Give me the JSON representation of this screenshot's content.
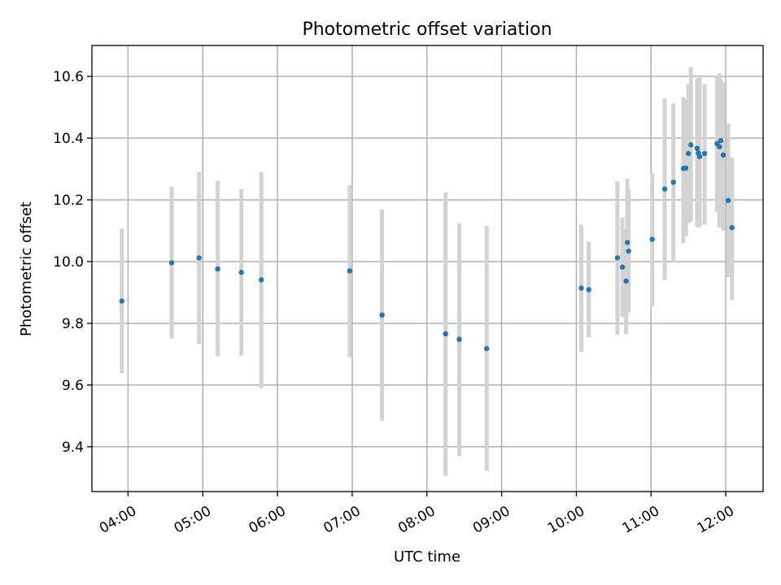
{
  "chart_data": {
    "type": "scatter",
    "title": "Photometric offset variation",
    "xlabel": "UTC time",
    "ylabel": "Photometric offset",
    "x_tick_labels": [
      "04:00",
      "05:00",
      "06:00",
      "07:00",
      "08:00",
      "09:00",
      "10:00",
      "11:00",
      "12:00"
    ],
    "y_tick_labels": [
      "9.4",
      "9.6",
      "9.8",
      "10.0",
      "10.2",
      "10.4",
      "10.6"
    ],
    "y_ticks": [
      9.4,
      9.6,
      9.8,
      10.0,
      10.2,
      10.4,
      10.6
    ],
    "xlim": [
      "03:31",
      "12:30"
    ],
    "ylim": [
      9.255,
      10.7
    ],
    "grid": true,
    "marker_color": "#1f77b4",
    "errorbar_color": "#d3d3d3",
    "points": [
      {
        "time": "03:55",
        "y": 9.872,
        "lo": 9.638,
        "hi": 10.107
      },
      {
        "time": "04:35",
        "y": 9.996,
        "lo": 9.75,
        "hi": 10.243
      },
      {
        "time": "04:57",
        "y": 10.012,
        "lo": 9.733,
        "hi": 10.291
      },
      {
        "time": "05:12",
        "y": 9.976,
        "lo": 9.693,
        "hi": 10.262
      },
      {
        "time": "05:31",
        "y": 9.965,
        "lo": 9.695,
        "hi": 10.235
      },
      {
        "time": "05:47",
        "y": 9.941,
        "lo": 9.59,
        "hi": 10.29
      },
      {
        "time": "06:58",
        "y": 9.97,
        "lo": 9.69,
        "hi": 10.248
      },
      {
        "time": "07:24",
        "y": 9.827,
        "lo": 9.484,
        "hi": 10.169
      },
      {
        "time": "08:15",
        "y": 9.766,
        "lo": 9.306,
        "hi": 10.224
      },
      {
        "time": "08:26",
        "y": 9.748,
        "lo": 9.37,
        "hi": 10.124
      },
      {
        "time": "08:48",
        "y": 9.718,
        "lo": 9.322,
        "hi": 10.115
      },
      {
        "time": "10:04",
        "y": 9.914,
        "lo": 9.708,
        "hi": 10.12
      },
      {
        "time": "10:10",
        "y": 9.909,
        "lo": 9.755,
        "hi": 10.065
      },
      {
        "time": "10:33",
        "y": 10.012,
        "lo": 9.763,
        "hi": 10.26
      },
      {
        "time": "10:37",
        "y": 9.982,
        "lo": 9.82,
        "hi": 10.143
      },
      {
        "time": "10:40",
        "y": 9.937,
        "lo": 9.765,
        "hi": 10.108
      },
      {
        "time": "10:41",
        "y": 10.062,
        "lo": 9.856,
        "hi": 10.268
      },
      {
        "time": "10:42",
        "y": 10.034,
        "lo": 9.835,
        "hi": 10.233
      },
      {
        "time": "11:01",
        "y": 10.072,
        "lo": 9.855,
        "hi": 10.288
      },
      {
        "time": "11:11",
        "y": 10.235,
        "lo": 9.94,
        "hi": 10.528
      },
      {
        "time": "11:18",
        "y": 10.257,
        "lo": 10.0,
        "hi": 10.512
      },
      {
        "time": "11:26",
        "y": 10.302,
        "lo": 10.06,
        "hi": 10.533
      },
      {
        "time": "11:28",
        "y": 10.303,
        "lo": 10.08,
        "hi": 10.523
      },
      {
        "time": "11:30",
        "y": 10.35,
        "lo": 10.125,
        "hi": 10.575
      },
      {
        "time": "11:32",
        "y": 10.378,
        "lo": 10.13,
        "hi": 10.63
      },
      {
        "time": "11:37",
        "y": 10.367,
        "lo": 10.115,
        "hi": 10.59
      },
      {
        "time": "11:38",
        "y": 10.352,
        "lo": 10.11,
        "hi": 10.595
      },
      {
        "time": "11:39",
        "y": 10.34,
        "lo": 10.112,
        "hi": 10.605
      },
      {
        "time": "11:43",
        "y": 10.35,
        "lo": 10.12,
        "hi": 10.575
      },
      {
        "time": "11:53",
        "y": 10.382,
        "lo": 10.16,
        "hi": 10.6
      },
      {
        "time": "11:55",
        "y": 10.372,
        "lo": 10.11,
        "hi": 10.61
      },
      {
        "time": "11:56",
        "y": 10.392,
        "lo": 10.12,
        "hi": 10.59
      },
      {
        "time": "11:58",
        "y": 10.345,
        "lo": 10.1,
        "hi": 10.58
      },
      {
        "time": "12:02",
        "y": 10.198,
        "lo": 9.95,
        "hi": 10.448
      },
      {
        "time": "12:05",
        "y": 10.11,
        "lo": 9.876,
        "hi": 10.337
      }
    ]
  }
}
